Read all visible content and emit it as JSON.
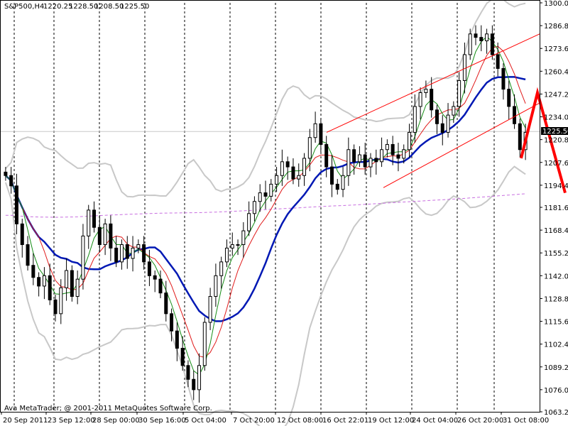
{
  "header": {
    "symbol": "S&P500,H4",
    "open": "1220.25",
    "high": "1228.50",
    "low": "1208.50",
    "close": "1225.50"
  },
  "copyright": "Ava MetaTrader; @ 2001-2011 MetaQuotes Software Corp.",
  "price_tag": "1225.50",
  "colors": {
    "candle": "#000000",
    "bollinger": "#c8c8c8",
    "ma_slow": "#0018b4",
    "ma_mid": "#e01a1a",
    "ma_fast": "#148c14",
    "ma_long": "#c86ee0",
    "channel": "#ff0000",
    "forecast": "#ff0000",
    "grid": "#000000"
  },
  "chart_data": {
    "type": "line",
    "chart_kind": "candlestick with moving averages and bollinger bands",
    "ylim": [
      1063.2,
      1300.0
    ],
    "y_ticks": [
      "1300.00",
      "1286.80",
      "1273.60",
      "1260.40",
      "1247.20",
      "1234.00",
      "1220.80",
      "1207.60",
      "1194.40",
      "1181.60",
      "1168.40",
      "1155.20",
      "1142.00",
      "1128.80",
      "1115.60",
      "1102.40",
      "1089.20",
      "1076.00",
      "1063.20"
    ],
    "x_tick_labels": [
      "20 Sep 2011",
      "23 Sep 12:00",
      "28 Sep 00:00",
      "30 Sep 16:00",
      "5 Oct 04:00",
      "7 Oct 20:00",
      "12 Oct 08:00",
      "16 Oct 22:01",
      "19 Oct 12:00",
      "24 Oct 04:00",
      "26 Oct 20:00",
      "31 Oct 08:00"
    ],
    "grid": "vertical dashed at day separators",
    "series": [
      {
        "kind": "close",
        "values": [
          1200,
          1194,
          1172,
          1160,
          1148,
          1141,
          1136,
          1142,
          1128,
          1120,
          1135,
          1145,
          1130,
          1140,
          1165,
          1180,
          1170,
          1160,
          1172,
          1158,
          1150,
          1160,
          1152,
          1158,
          1160,
          1150,
          1142,
          1140,
          1132,
          1120,
          1110,
          1100,
          1090,
          1082,
          1076,
          1090,
          1115,
          1130,
          1142,
          1150,
          1158,
          1160,
          1160,
          1168,
          1178,
          1185,
          1190,
          1188,
          1195,
          1200,
          1208,
          1205,
          1198,
          1200,
          1210,
          1222,
          1230,
          1218,
          1205,
          1195,
          1192,
          1200,
          1215,
          1208,
          1212,
          1205,
          1210,
          1208,
          1215,
          1218,
          1212,
          1210,
          1215,
          1225,
          1240,
          1248,
          1250,
          1238,
          1230,
          1225,
          1235,
          1240,
          1255,
          1270,
          1282,
          1280,
          1278,
          1282,
          1270,
          1262,
          1250,
          1240,
          1230,
          1215,
          1225
        ]
      }
    ],
    "channel": {
      "upper": [
        [
          1225,
          1282
        ]
      ],
      "lower": [
        [
          1193,
          1242
        ]
      ]
    },
    "forecast_points": [
      1210,
      1248,
      1190
    ]
  }
}
